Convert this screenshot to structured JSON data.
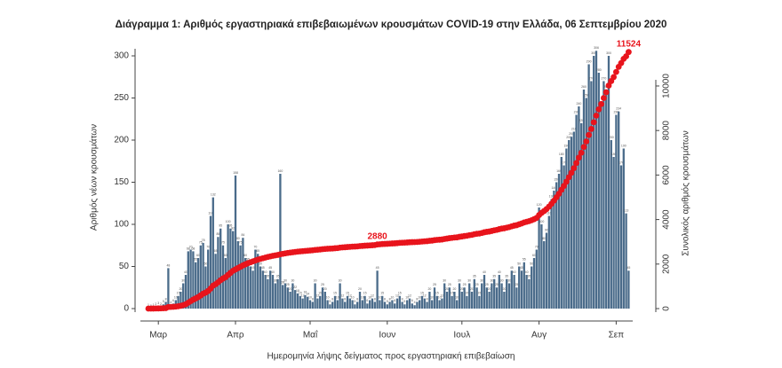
{
  "chart_data": {
    "type": "bar_line",
    "title": "Διάγραμμα 1: Αριθμός εργαστηριακά επιβεβαιωμένων κρουσμάτων COVID-19 στην Ελλάδα, 06 Σεπτεμβρίου 2020",
    "x_label": "Ημερομηνία λήψης δείγματος προς εργαστηριακή επιβεβαίωση",
    "y_label": "Αριθμός νέων κρουσμάτων",
    "y2_label": "Συνολικός αριθμός κρουσμάτων",
    "categories": [
      null,
      null,
      null,
      null,
      "Μαρ",
      null,
      null,
      null,
      null,
      null,
      null,
      null,
      null,
      null,
      null,
      null,
      null,
      null,
      null,
      null,
      null,
      null,
      null,
      null,
      null,
      null,
      null,
      null,
      null,
      null,
      null,
      null,
      null,
      null,
      null,
      "Απρ",
      null,
      null,
      null,
      null,
      null,
      null,
      null,
      null,
      null,
      null,
      null,
      null,
      null,
      null,
      null,
      null,
      null,
      null,
      null,
      null,
      null,
      null,
      null,
      null,
      null,
      null,
      null,
      null,
      null,
      "Μαΐ",
      null,
      null,
      null,
      null,
      null,
      null,
      null,
      null,
      null,
      null,
      null,
      null,
      null,
      null,
      null,
      null,
      null,
      null,
      null,
      null,
      null,
      null,
      null,
      null,
      null,
      null,
      null,
      null,
      null,
      null,
      "Ιουν",
      null,
      null,
      null,
      null,
      null,
      null,
      null,
      null,
      null,
      null,
      null,
      null,
      null,
      null,
      null,
      null,
      null,
      null,
      null,
      null,
      null,
      null,
      null,
      null,
      null,
      null,
      null,
      null,
      null,
      "Ιουλ",
      null,
      null,
      null,
      null,
      null,
      null,
      null,
      null,
      null,
      null,
      null,
      null,
      null,
      null,
      null,
      null,
      null,
      null,
      null,
      null,
      null,
      null,
      null,
      null,
      null,
      null,
      null,
      null,
      null,
      null,
      "Αυγ",
      null,
      null,
      null,
      null,
      null,
      null,
      null,
      null,
      null,
      null,
      null,
      null,
      null,
      null,
      null,
      null,
      null,
      null,
      null,
      null,
      null,
      null,
      null,
      null,
      null,
      null,
      null,
      null,
      null,
      null,
      "Σεπ",
      null,
      null,
      null,
      null,
      null
    ],
    "series": [
      {
        "color": "#4a6b8a",
        "axis": "y",
        "values": [
          1,
          0,
          1,
          2,
          3,
          2,
          5,
          8,
          48,
          4,
          6,
          10,
          15,
          20,
          30,
          40,
          68,
          70,
          68,
          55,
          60,
          75,
          78,
          50,
          70,
          110,
          132,
          65,
          85,
          95,
          75,
          60,
          100,
          95,
          92,
          158,
          80,
          75,
          84,
          60,
          55,
          50,
          45,
          70,
          65,
          50,
          45,
          40,
          35,
          45,
          40,
          30,
          35,
          160,
          28,
          30,
          25,
          20,
          30,
          22,
          18,
          15,
          12,
          16,
          14,
          10,
          8,
          30,
          12,
          15,
          25,
          20,
          10,
          5,
          8,
          15,
          10,
          30,
          12,
          8,
          15,
          12,
          10,
          5,
          8,
          20,
          10,
          15,
          6,
          10,
          12,
          8,
          45,
          10,
          15,
          8,
          5,
          8,
          10,
          6,
          12,
          15,
          8,
          5,
          10,
          12,
          6,
          4,
          8,
          10,
          15,
          12,
          8,
          20,
          10,
          25,
          15,
          10,
          12,
          30,
          20,
          25,
          15,
          20,
          10,
          30,
          20,
          25,
          15,
          30,
          20,
          35,
          25,
          15,
          30,
          40,
          25,
          20,
          30,
          35,
          25,
          40,
          30,
          20,
          35,
          30,
          45,
          40,
          25,
          50,
          45,
          55,
          40,
          35,
          50,
          60,
          70,
          120,
          100,
          80,
          90,
          110,
          130,
          140,
          150,
          160,
          180,
          170,
          190,
          200,
          204,
          210,
          230,
          240,
          220,
          260,
          250,
          290,
          270,
          300,
          306,
          280,
          240,
          270,
          260,
          300,
          200,
          180,
          230,
          234,
          170,
          190,
          113,
          45
        ]
      },
      {
        "color": "#e8141c",
        "axis": "y2",
        "values": [
          1,
          1,
          2,
          4,
          7,
          9,
          14,
          22,
          70,
          74,
          80,
          90,
          105,
          125,
          155,
          195,
          263,
          333,
          401,
          456,
          516,
          591,
          669,
          719,
          789,
          899,
          1031,
          1096,
          1181,
          1276,
          1351,
          1411,
          1511,
          1606,
          1698,
          1760,
          1820,
          1880,
          1940,
          1990,
          2040,
          2080,
          2120,
          2160,
          2200,
          2230,
          2260,
          2290,
          2320,
          2345,
          2370,
          2390,
          2410,
          2440,
          2460,
          2480,
          2500,
          2515,
          2530,
          2545,
          2560,
          2570,
          2580,
          2590,
          2600,
          2610,
          2618,
          2635,
          2645,
          2655,
          2668,
          2680,
          2688,
          2693,
          2700,
          2712,
          2720,
          2740,
          2750,
          2756,
          2766,
          2775,
          2783,
          2787,
          2793,
          2808,
          2815,
          2826,
          2830,
          2838,
          2846,
          2852,
          2880,
          2888,
          2900,
          2906,
          2910,
          2918,
          2926,
          2931,
          2940,
          2952,
          2958,
          2962,
          2970,
          2980,
          2985,
          2988,
          2994,
          3002,
          3014,
          3024,
          3030,
          3046,
          3054,
          3074,
          3086,
          3094,
          3104,
          3128,
          3144,
          3164,
          3176,
          3192,
          3200,
          3224,
          3240,
          3260,
          3272,
          3296,
          3312,
          3340,
          3360,
          3372,
          3396,
          3428,
          3448,
          3464,
          3488,
          3516,
          3536,
          3568,
          3592,
          3608,
          3636,
          3660,
          3696,
          3728,
          3748,
          3788,
          3824,
          3868,
          3900,
          3928,
          3968,
          4016,
          4072,
          4200,
          4300,
          4380,
          4470,
          4580,
          4710,
          4850,
          5000,
          5160,
          5340,
          5510,
          5700,
          5900,
          6100,
          6310,
          6540,
          6780,
          7000,
          7260,
          7510,
          7800,
          8070,
          8370,
          8670,
          8950,
          9190,
          9460,
          9720,
          10020,
          10220,
          10400,
          10630,
          10860,
          11030,
          11220,
          11333,
          11524
        ]
      }
    ],
    "labeled_points": [
      "chart_data.series.1.values.92",
      "chart_data.series.1.values.193"
    ],
    "ylim": [
      0,
      320
    ],
    "yticks": [
      0,
      50,
      100,
      150,
      200,
      250,
      300
    ],
    "y2lim": [
      0,
      12110
    ],
    "y2ticks": [
      0,
      2000,
      4000,
      6000,
      8000,
      10000
    ]
  }
}
